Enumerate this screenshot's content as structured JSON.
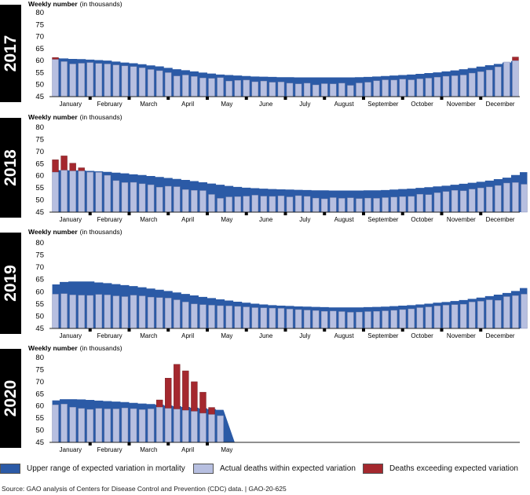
{
  "chart_data": [
    {
      "type": "bar",
      "year_label": "2017",
      "ylabel_bold": "Weekly number",
      "ylabel_rest": "(in thousands)",
      "ylim": [
        45,
        80
      ],
      "yticks": [
        45,
        50,
        55,
        60,
        65,
        70,
        75,
        80
      ],
      "months": [
        "January",
        "February",
        "March",
        "April",
        "May",
        "June",
        "July",
        "August",
        "September",
        "October",
        "November",
        "December"
      ],
      "series": [
        {
          "name": "Actual deaths within expected variation",
          "values": [
            60.5,
            59.6,
            58.6,
            58.9,
            59.2,
            58.8,
            58.6,
            58.2,
            57.8,
            57.5,
            57.0,
            56.3,
            55.8,
            55.0,
            53.6,
            54.0,
            53.4,
            52.8,
            52.6,
            52.9,
            51.5,
            51.8,
            51.9,
            51.2,
            51.5,
            51.0,
            51.1,
            50.6,
            50.3,
            50.6,
            49.9,
            50.4,
            50.3,
            50.6,
            49.7,
            50.7,
            51.0,
            51.6,
            52.0,
            51.9,
            52.3,
            52.0,
            52.4,
            52.7,
            53.1,
            53.5,
            53.7,
            54.0,
            54.8,
            55.4,
            56.1,
            57.4,
            59.4,
            60.0
          ]
        },
        {
          "name": "Deaths exceeding expected variation",
          "values": [
            61.3,
            59.6,
            58.6,
            58.9,
            59.2,
            58.8,
            58.6,
            58.2,
            57.8,
            57.5,
            57.0,
            56.3,
            55.8,
            55.0,
            53.6,
            54.0,
            53.4,
            52.8,
            52.6,
            52.9,
            51.5,
            51.8,
            51.9,
            51.2,
            51.5,
            51.0,
            51.1,
            50.6,
            50.3,
            50.6,
            49.9,
            50.4,
            50.3,
            50.6,
            49.7,
            50.7,
            51.0,
            51.6,
            52.0,
            51.9,
            52.3,
            52.0,
            52.4,
            52.7,
            53.1,
            53.5,
            53.7,
            54.0,
            54.8,
            55.4,
            56.1,
            57.4,
            59.4,
            61.5
          ]
        },
        {
          "name": "Upper range of expected variation in mortality",
          "values": [
            61.0,
            60.9,
            60.7,
            60.6,
            60.4,
            60.2,
            60.0,
            59.6,
            59.2,
            58.9,
            58.5,
            58.0,
            57.6,
            57.0,
            56.4,
            56.0,
            55.5,
            55.0,
            54.6,
            54.2,
            54.0,
            53.8,
            53.6,
            53.4,
            53.3,
            53.2,
            53.1,
            53.1,
            53.0,
            53.0,
            53.0,
            53.0,
            53.0,
            53.0,
            53.0,
            53.1,
            53.2,
            53.4,
            53.6,
            53.8,
            54.0,
            54.2,
            54.5,
            54.8,
            55.1,
            55.5,
            55.9,
            56.4,
            56.9,
            57.5,
            58.1,
            58.6,
            59.2,
            59.8
          ]
        }
      ]
    },
    {
      "type": "bar",
      "year_label": "2018",
      "ylabel_bold": "Weekly number",
      "ylabel_rest": "(in thousands)",
      "ylim": [
        45,
        80
      ],
      "yticks": [
        45,
        50,
        55,
        60,
        65,
        70,
        75,
        80
      ],
      "months": [
        "January",
        "February",
        "March",
        "April",
        "May",
        "June",
        "July",
        "August",
        "September",
        "October",
        "November",
        "December"
      ],
      "series": [
        {
          "name": "Actual deaths within expected variation",
          "values": [
            61.5,
            62.3,
            62.0,
            62.0,
            61.5,
            61.4,
            60.2,
            58.0,
            57.2,
            57.3,
            56.7,
            56.3,
            55.3,
            55.7,
            55.5,
            54.3,
            54.0,
            53.9,
            52.3,
            50.7,
            51.3,
            51.4,
            51.6,
            52.0,
            51.6,
            51.5,
            51.7,
            51.3,
            51.8,
            51.5,
            50.8,
            50.5,
            51.0,
            50.7,
            50.9,
            50.6,
            50.8,
            50.7,
            51.0,
            51.2,
            51.4,
            51.5,
            52.4,
            52.2,
            53.0,
            53.5,
            54.0,
            53.8,
            54.5,
            55.0,
            55.4,
            56.0,
            57.0,
            57.2,
            56.5
          ]
        },
        {
          "name": "Deaths exceeding expected variation",
          "values": [
            66.6,
            68.2,
            65.2,
            63.3,
            61.5,
            61.4,
            60.2,
            58.0,
            57.2,
            57.3,
            56.7,
            56.3,
            55.3,
            55.7,
            55.5,
            54.3,
            54.0,
            53.9,
            52.3,
            50.7,
            51.3,
            51.4,
            51.6,
            52.0,
            51.6,
            51.5,
            51.7,
            51.3,
            51.8,
            51.5,
            50.8,
            50.5,
            51.0,
            50.7,
            50.9,
            50.6,
            50.8,
            50.7,
            51.0,
            51.2,
            51.4,
            51.5,
            52.4,
            52.2,
            53.0,
            53.5,
            54.0,
            53.8,
            54.5,
            55.0,
            55.4,
            56.0,
            57.0,
            57.2,
            56.5
          ]
        },
        {
          "name": "Upper range of expected variation in mortality",
          "values": [
            62.3,
            62.3,
            62.2,
            62.2,
            62.0,
            61.8,
            61.6,
            61.3,
            61.0,
            60.6,
            60.3,
            59.9,
            59.5,
            59.1,
            58.7,
            58.3,
            57.8,
            57.3,
            56.8,
            56.3,
            55.8,
            55.4,
            55.1,
            54.9,
            54.7,
            54.5,
            54.4,
            54.3,
            54.2,
            54.1,
            54.0,
            54.0,
            53.9,
            53.9,
            53.9,
            53.9,
            54.0,
            54.0,
            54.1,
            54.3,
            54.5,
            54.7,
            55.0,
            55.3,
            55.6,
            55.9,
            56.3,
            56.7,
            57.1,
            57.5,
            58.0,
            58.6,
            59.2,
            60.3,
            61.5
          ]
        }
      ]
    },
    {
      "type": "bar",
      "year_label": "2019",
      "ylabel_bold": "Weekly number",
      "ylabel_rest": "(in thousands)",
      "ylim": [
        45,
        80
      ],
      "yticks": [
        45,
        50,
        55,
        60,
        65,
        70,
        75,
        80
      ],
      "months": [
        "January",
        "February",
        "March",
        "April",
        "May",
        "June",
        "July",
        "August",
        "September",
        "October",
        "November",
        "December"
      ],
      "series": [
        {
          "name": "Actual deaths within expected variation",
          "values": [
            59.0,
            59.2,
            58.7,
            58.6,
            58.5,
            58.9,
            58.7,
            58.3,
            58.0,
            58.6,
            58.3,
            57.8,
            57.6,
            57.4,
            56.7,
            55.8,
            55.0,
            54.7,
            54.5,
            54.3,
            54.2,
            54.0,
            53.8,
            53.5,
            53.4,
            53.3,
            53.2,
            52.9,
            52.7,
            52.5,
            52.3,
            52.0,
            52.1,
            51.9,
            51.6,
            51.7,
            51.9,
            52.0,
            52.2,
            52.4,
            52.7,
            53.0,
            53.5,
            53.8,
            54.2,
            54.5,
            54.7,
            54.9,
            55.8,
            56.1,
            56.7,
            56.5,
            58.0,
            58.4,
            59.0
          ]
        },
        {
          "name": "Deaths exceeding expected variation",
          "values": [
            59.0,
            59.2,
            58.7,
            58.6,
            58.5,
            58.9,
            58.7,
            58.3,
            58.0,
            58.6,
            58.3,
            57.8,
            57.6,
            57.4,
            56.7,
            55.8,
            55.0,
            54.7,
            54.5,
            54.3,
            54.2,
            54.0,
            53.8,
            53.5,
            53.4,
            53.3,
            53.2,
            52.9,
            52.7,
            52.5,
            52.3,
            52.0,
            52.1,
            51.9,
            51.6,
            51.7,
            51.9,
            52.0,
            52.2,
            52.4,
            52.7,
            53.0,
            53.5,
            53.8,
            54.2,
            54.5,
            54.7,
            54.9,
            55.8,
            56.1,
            56.7,
            56.5,
            58.0,
            58.4,
            59.0
          ]
        },
        {
          "name": "Upper range of expected variation in mortality",
          "values": [
            63.0,
            64.0,
            64.2,
            64.2,
            64.2,
            63.8,
            63.5,
            63.1,
            62.7,
            62.3,
            61.8,
            61.3,
            60.8,
            60.3,
            59.7,
            59.1,
            58.5,
            57.9,
            57.4,
            56.9,
            56.4,
            55.9,
            55.5,
            55.1,
            54.8,
            54.5,
            54.3,
            54.2,
            54.0,
            53.9,
            53.8,
            53.7,
            53.6,
            53.6,
            53.6,
            53.6,
            53.7,
            53.8,
            53.9,
            54.1,
            54.3,
            54.5,
            54.8,
            55.1,
            55.5,
            55.8,
            56.2,
            56.6,
            57.1,
            57.6,
            58.2,
            58.8,
            59.5,
            60.3,
            61.5
          ]
        }
      ]
    },
    {
      "type": "bar",
      "year_label": "2020",
      "ylabel_bold": "Weekly number",
      "ylabel_rest": "(in thousands)",
      "ylim": [
        45,
        80
      ],
      "yticks": [
        45,
        50,
        55,
        60,
        65,
        70,
        75,
        80
      ],
      "months": [
        "January",
        "February",
        "March",
        "April",
        "May"
      ],
      "series": [
        {
          "name": "Actual deaths within expected variation",
          "values": [
            60.5,
            60.8,
            59.5,
            59.0,
            58.6,
            59.0,
            58.8,
            58.8,
            59.2,
            58.9,
            58.5,
            58.8,
            59.5,
            59.0,
            58.7,
            58.2,
            57.8,
            57.0,
            56.5,
            56.0
          ]
        },
        {
          "name": "Deaths exceeding expected variation",
          "values": [
            60.5,
            60.8,
            59.5,
            59.0,
            58.6,
            59.0,
            58.8,
            58.8,
            59.2,
            58.9,
            58.5,
            58.8,
            62.5,
            71.5,
            77.2,
            74.5,
            70.0,
            65.7,
            59.4,
            56.0
          ]
        },
        {
          "name": "Upper range of expected variation in mortality",
          "values": [
            62.3,
            62.8,
            62.8,
            62.7,
            62.5,
            62.2,
            62.0,
            61.8,
            61.6,
            61.3,
            61.0,
            60.8,
            60.5,
            60.2,
            59.9,
            59.6,
            59.3,
            59.0,
            58.7,
            58.4
          ]
        }
      ]
    }
  ],
  "legend": {
    "upper": "Upper range of expected variation in mortality",
    "within": "Actual deaths within expected variation",
    "exceeding": "Deaths exceeding expected variation"
  },
  "colors": {
    "upper": "#2b5aa6",
    "within": "#b7bfe0",
    "exceeding": "#a4282e",
    "year_box": "#000000"
  },
  "source": "Source: GAO analysis of Centers for Disease Control and Prevention (CDC) data.  |  GAO-20-625"
}
